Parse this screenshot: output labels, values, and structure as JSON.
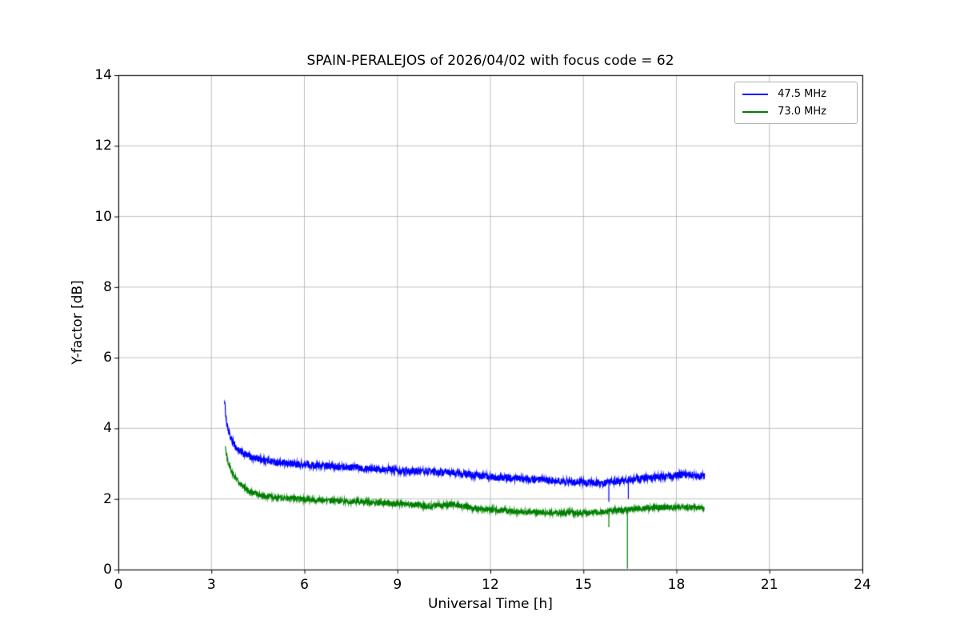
{
  "chart_data": {
    "type": "line",
    "title": "SPAIN-PERALEJOS of 2026/04/02 with focus code = 62",
    "xlabel": "Universal Time [h]",
    "ylabel": "Y-factor [dB]",
    "xlim": [
      0,
      24
    ],
    "ylim": [
      0,
      14
    ],
    "xticks": [
      0,
      3,
      6,
      9,
      12,
      15,
      18,
      21,
      24
    ],
    "yticks": [
      0,
      2,
      4,
      6,
      8,
      10,
      12,
      14
    ],
    "grid": true,
    "grid_color": "#b0b0b0",
    "frame_color": "#000000",
    "background_color": "#ffffff",
    "legend_position": "upper right",
    "series": [
      {
        "name": "47.5 MHz",
        "color": "#0000ff",
        "x_start": 3.42,
        "x_end": 18.92,
        "noise_amplitude": 0.1,
        "baseline": [
          [
            3.42,
            4.78
          ],
          [
            3.5,
            4.1
          ],
          [
            3.6,
            3.75
          ],
          [
            3.8,
            3.45
          ],
          [
            4.0,
            3.3
          ],
          [
            4.3,
            3.18
          ],
          [
            4.7,
            3.1
          ],
          [
            5.2,
            3.02
          ],
          [
            6.0,
            2.97
          ],
          [
            7.0,
            2.92
          ],
          [
            8.0,
            2.88
          ],
          [
            9.0,
            2.82
          ],
          [
            10.0,
            2.78
          ],
          [
            11.0,
            2.72
          ],
          [
            12.0,
            2.63
          ],
          [
            13.0,
            2.57
          ],
          [
            14.0,
            2.51
          ],
          [
            15.0,
            2.47
          ],
          [
            15.7,
            2.45
          ],
          [
            16.5,
            2.55
          ],
          [
            17.5,
            2.63
          ],
          [
            18.3,
            2.68
          ],
          [
            18.92,
            2.65
          ]
        ],
        "spikes": [
          [
            15.82,
            1.92
          ],
          [
            16.45,
            2.0
          ]
        ]
      },
      {
        "name": "73.0 MHz",
        "color": "#008000",
        "x_start": 3.45,
        "x_end": 18.9,
        "noise_amplitude": 0.08,
        "baseline": [
          [
            3.45,
            3.42
          ],
          [
            3.55,
            3.0
          ],
          [
            3.7,
            2.7
          ],
          [
            3.9,
            2.45
          ],
          [
            4.2,
            2.22
          ],
          [
            4.6,
            2.1
          ],
          [
            5.2,
            2.03
          ],
          [
            6.0,
            1.99
          ],
          [
            7.0,
            1.95
          ],
          [
            8.0,
            1.9
          ],
          [
            9.0,
            1.86
          ],
          [
            10.0,
            1.8
          ],
          [
            10.8,
            1.84
          ],
          [
            11.5,
            1.74
          ],
          [
            12.3,
            1.68
          ],
          [
            13.2,
            1.63
          ],
          [
            14.2,
            1.6
          ],
          [
            15.2,
            1.61
          ],
          [
            16.2,
            1.68
          ],
          [
            17.0,
            1.74
          ],
          [
            18.0,
            1.77
          ],
          [
            18.9,
            1.75
          ]
        ],
        "spikes": [
          [
            15.82,
            1.2
          ],
          [
            16.42,
            0.03
          ]
        ]
      }
    ]
  }
}
